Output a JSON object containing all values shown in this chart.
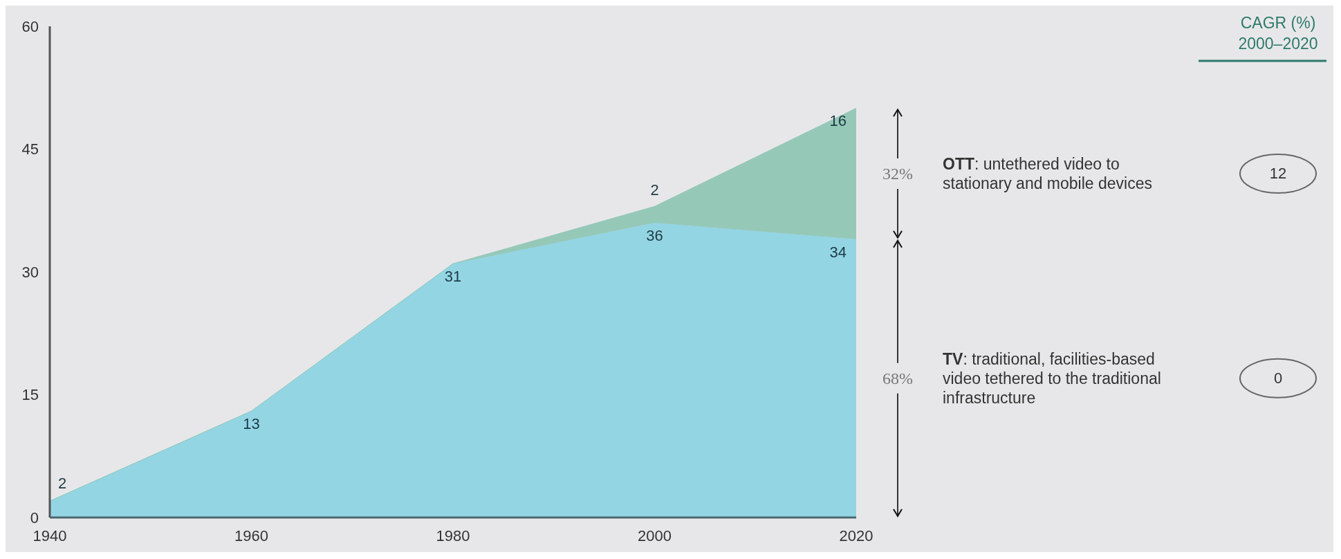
{
  "chart_data": {
    "type": "area",
    "stacked": true,
    "x": [
      1940,
      1960,
      1980,
      2000,
      2020
    ],
    "series": [
      {
        "name": "TV: traditional, facilities-based video tethered to the traditional infrastructure",
        "color": "#94d5e4",
        "values": [
          2,
          13,
          31,
          36,
          34
        ],
        "value_labels": [
          "2",
          "13",
          "31",
          "36",
          "34"
        ]
      },
      {
        "name": "OTT: untethered video to stationary and mobile devices",
        "color": "#96c8b8",
        "values": [
          0,
          0,
          0,
          2,
          16
        ],
        "value_labels": [
          null,
          null,
          null,
          "2",
          "16"
        ]
      }
    ],
    "xlim": [
      1940,
      2020
    ],
    "xticks": [
      1940,
      1960,
      1980,
      2000,
      2020
    ],
    "ylim": [
      0,
      60
    ],
    "yticks": [
      0,
      15,
      30,
      45,
      60
    ],
    "annotations": [
      "68%",
      "32%",
      "CAGR (%) 2000–2020",
      "0",
      "12"
    ]
  }
}
